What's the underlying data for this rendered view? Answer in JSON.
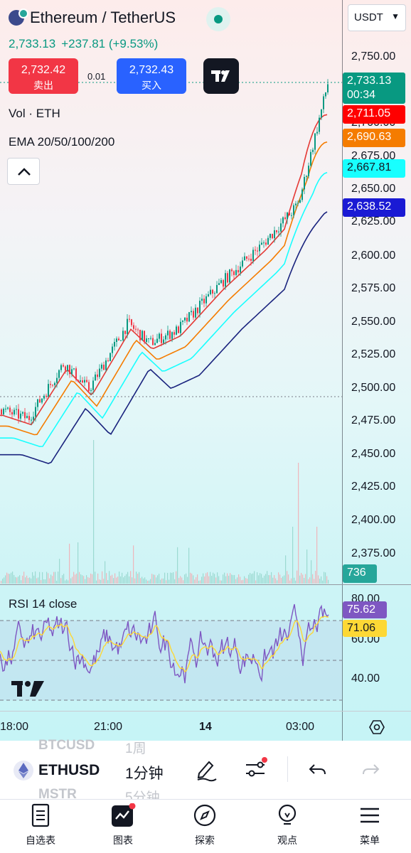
{
  "header": {
    "symbol_title": "Ethereum / TetherUS",
    "last_price": "2,733.13",
    "change": "+237.81 (+9.53%)",
    "currency": "USDT"
  },
  "trade": {
    "sell_price": "2,732.42",
    "sell_label": "卖出",
    "spread": "0.01",
    "buy_price": "2,732.43",
    "buy_label": "买入"
  },
  "legends": {
    "volume": "Vol · ETH",
    "ema": "EMA 20/50/100/200",
    "rsi": "RSI 14 close"
  },
  "price_axis": {
    "labels": [
      "2,750.00",
      "2,700.00",
      "2,675.00",
      "2,650.00",
      "2,625.00",
      "2,600.00",
      "2,575.00",
      "2,550.00",
      "2,525.00",
      "2,500.00",
      "2,475.00",
      "2,450.00",
      "2,425.00",
      "2,400.00",
      "2,375.00"
    ]
  },
  "price_tags": {
    "last": "2,733.13",
    "countdown": "00:34",
    "ema20": "2,711.05",
    "ema50": "2,690.63",
    "ema100": "2,667.81",
    "ema200": "2,638.52",
    "volume": "736"
  },
  "colors": {
    "up": "#089981",
    "down": "#f23645",
    "ema20": "#e53935",
    "ema50": "#f57c00",
    "ema100": "#18ffff",
    "ema200": "#1a237e",
    "rsi_line": "#7e57c2",
    "rsi_ma": "#fdd835"
  },
  "rsi_axis": {
    "labels": [
      "80.00",
      "60.00",
      "40.00"
    ],
    "rsi_value": "75.62",
    "rsi_ma_value": "71.06"
  },
  "time_axis": {
    "labels": [
      "18:00",
      "21:00",
      "14",
      "03:00"
    ]
  },
  "chart_data": {
    "type": "candlestick",
    "symbol": "ETHUSDT",
    "interval": "1分钟",
    "price_range": [
      2360,
      2760
    ],
    "last_price": 2733.13,
    "ema": {
      "ema20": 2711.05,
      "ema50": 2690.63,
      "ema100": 2667.81,
      "ema200": 2638.52
    },
    "rsi": {
      "value": 75.62,
      "ma": 71.06,
      "levels": [
        70,
        50,
        30
      ],
      "range": [
        20,
        90
      ]
    },
    "price_path": [
      {
        "t": "18:00",
        "p": 2485
      },
      {
        "t": "19:30",
        "p": 2478
      },
      {
        "t": "20:00",
        "p": 2520
      },
      {
        "t": "21:00",
        "p": 2500
      },
      {
        "t": "22:00",
        "p": 2550
      },
      {
        "t": "23:00",
        "p": 2535
      },
      {
        "t": "00:00",
        "p": 2545
      },
      {
        "t": "01:00",
        "p": 2580
      },
      {
        "t": "02:00",
        "p": 2610
      },
      {
        "t": "03:00",
        "p": 2640
      },
      {
        "t": "04:00",
        "p": 2733.13
      }
    ]
  },
  "toolbar": {
    "symbol_prev": "BTCUSD",
    "symbol_current": "ETHUSD",
    "symbol_next": "MSTR",
    "interval_prev": "1周",
    "interval_current": "1分钟",
    "interval_next": "5分钟"
  },
  "nav": {
    "watchlist": "自选表",
    "chart": "图表",
    "explore": "探索",
    "ideas": "观点",
    "menu": "菜单"
  }
}
